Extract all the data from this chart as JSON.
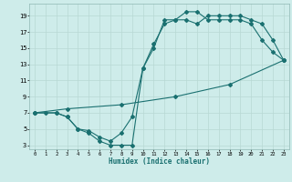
{
  "title": "",
  "xlabel": "Humidex (Indice chaleur)",
  "xlim": [
    -0.5,
    23.5
  ],
  "ylim": [
    2.5,
    20.5
  ],
  "xticks": [
    0,
    1,
    2,
    3,
    4,
    5,
    6,
    7,
    8,
    9,
    10,
    11,
    12,
    13,
    14,
    15,
    16,
    17,
    18,
    19,
    20,
    21,
    22,
    23
  ],
  "yticks": [
    3,
    5,
    7,
    9,
    11,
    13,
    15,
    17,
    19
  ],
  "bg_color": "#ceecea",
  "grid_color": "#b8d8d4",
  "line_color": "#1a7070",
  "line1_x": [
    0,
    1,
    2,
    3,
    4,
    5,
    6,
    7,
    8,
    9,
    10,
    11,
    12,
    13,
    14,
    15,
    16,
    17,
    18,
    19,
    20,
    21,
    22,
    23
  ],
  "line1_y": [
    7,
    7,
    7,
    6.5,
    5,
    4.5,
    3.5,
    3,
    3,
    3,
    12.5,
    15,
    18.5,
    18.5,
    19.5,
    19.5,
    18.5,
    18.5,
    18.5,
    18.5,
    18,
    16,
    14.5,
    13.5
  ],
  "line2_x": [
    0,
    2,
    3,
    4,
    5,
    6,
    7,
    8,
    9,
    10,
    11,
    12,
    13,
    14,
    15,
    16,
    17,
    18,
    19,
    20,
    21,
    22,
    23
  ],
  "line2_y": [
    7,
    7,
    6.5,
    5,
    4.8,
    4,
    3.5,
    4.5,
    6.5,
    12.5,
    15.5,
    18,
    18.5,
    18.5,
    18,
    19,
    19,
    19,
    19,
    18.5,
    18,
    16,
    13.5
  ],
  "line3_x": [
    0,
    3,
    8,
    13,
    18,
    23
  ],
  "line3_y": [
    7,
    7.5,
    8,
    9,
    10.5,
    13.5
  ]
}
